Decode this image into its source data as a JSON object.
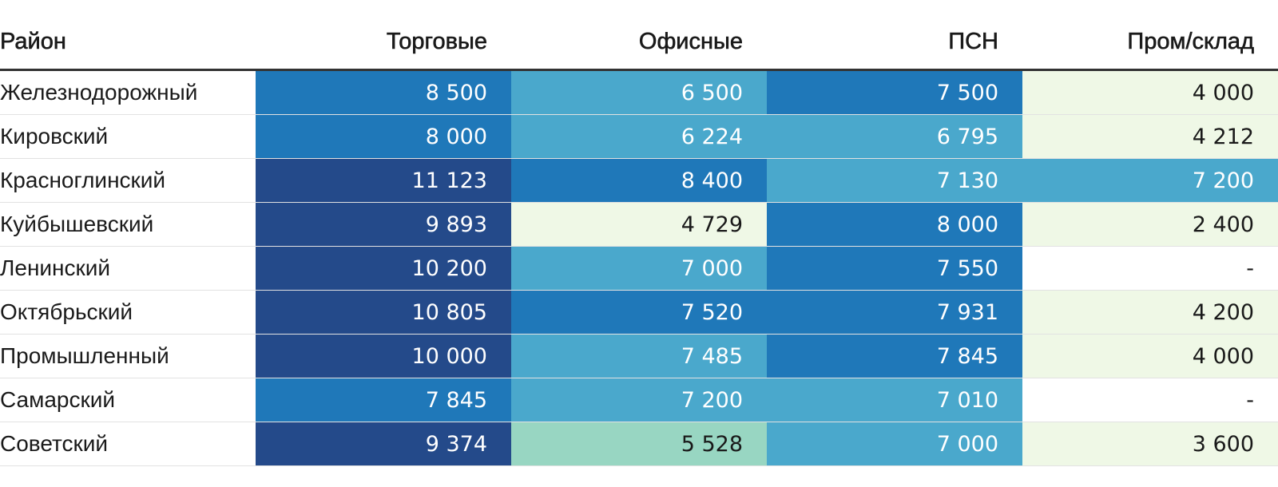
{
  "chart_data": {
    "type": "heatmap",
    "columns": [
      "Район",
      "Торговые",
      "Офисные",
      "ПСН",
      "Пром/склад"
    ],
    "rows": [
      {
        "name": "Железнодорожный",
        "values": [
          "8 500",
          "6 500",
          "7 500",
          "4 000"
        ]
      },
      {
        "name": "Кировский",
        "values": [
          "8 000",
          "6 224",
          "6 795",
          "4 212"
        ]
      },
      {
        "name": "Красноглинский",
        "values": [
          "11 123",
          "8 400",
          "7 130",
          "7 200"
        ]
      },
      {
        "name": "Куйбышевский",
        "values": [
          "9 893",
          "4 729",
          "8 000",
          "2 400"
        ]
      },
      {
        "name": "Ленинский",
        "values": [
          "10 200",
          "7 000",
          "7 550",
          "-"
        ]
      },
      {
        "name": "Октябрьский",
        "values": [
          "10 805",
          "7 520",
          "7 931",
          "4 200"
        ]
      },
      {
        "name": "Промышленный",
        "values": [
          "10 000",
          "7 485",
          "7 845",
          "4 000"
        ]
      },
      {
        "name": "Самарский",
        "values": [
          "7 845",
          "7 200",
          "7 010",
          "-"
        ]
      },
      {
        "name": "Советский",
        "values": [
          "9 374",
          "5 528",
          "7 000",
          "3 600"
        ]
      }
    ],
    "color_scale": {
      "breaks": [
        3000,
        5000,
        6000,
        7500,
        9000
      ],
      "colors": [
        "#eff8e6",
        "#98d6c2",
        "#4aa8cc",
        "#1f78b9",
        "#244a8a"
      ],
      "missing_color": "#ffffff",
      "light_text": "#ffffff",
      "dark_text": "#1a1a1a"
    }
  }
}
